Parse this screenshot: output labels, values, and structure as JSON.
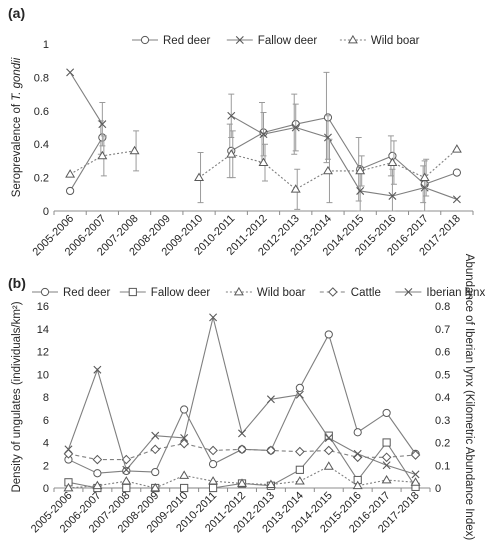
{
  "chart_data": [
    {
      "panel": "(a)",
      "type": "line",
      "ylabel_prefix": "Seroprevalence of ",
      "ylabel_italic": "T. gondii",
      "ylim": [
        0,
        1
      ],
      "yticks": [
        "0",
        "0.2",
        "0.4",
        "0.6",
        "0.8",
        "1"
      ],
      "categories": [
        "2005-2006",
        "2006-2007",
        "2007-2008",
        "2008-2009",
        "2009-2010",
        "2010-2011",
        "2011-2012",
        "2012-2013",
        "2013-2014",
        "2014-2015",
        "2015-2016",
        "2016-2017",
        "2017-2018"
      ],
      "legend_position": "top",
      "series": [
        {
          "name": "Red deer",
          "marker": "circle",
          "dash": "solid",
          "color": "#7f7f7f",
          "values": [
            0.12,
            0.44,
            null,
            null,
            null,
            0.36,
            0.47,
            0.52,
            0.56,
            0.25,
            0.33,
            0.16,
            0.23
          ],
          "errors": [
            null,
            0.1,
            null,
            null,
            null,
            0.16,
            0.18,
            0.18,
            0.27,
            0.19,
            0.12,
            0.11,
            null
          ]
        },
        {
          "name": "Fallow deer",
          "marker": "cross",
          "dash": "solid",
          "color": "#7f7f7f",
          "values": [
            0.83,
            0.52,
            null,
            null,
            null,
            0.57,
            0.46,
            0.5,
            0.44,
            0.12,
            0.09,
            0.14,
            0.07
          ],
          "errors": [
            null,
            0.13,
            null,
            null,
            null,
            0.13,
            0.13,
            0.14,
            0.13,
            0.14,
            0.16,
            0.16,
            null
          ]
        },
        {
          "name": "Wild boar",
          "marker": "triangle",
          "dash": "dotted",
          "color": "#7f7f7f",
          "values": [
            0.22,
            0.33,
            0.36,
            null,
            0.2,
            0.34,
            0.29,
            0.13,
            0.24,
            0.24,
            0.29,
            0.2,
            0.37
          ],
          "errors": [
            null,
            0.12,
            0.12,
            null,
            0.15,
            0.14,
            0.11,
            0.12,
            0.19,
            0.09,
            0.13,
            0.11,
            null
          ]
        }
      ]
    },
    {
      "panel": "(b)",
      "type": "line",
      "ylabel": "Density of ungulates (individuals/km²)",
      "ylabel_right": "Abundance of Iberian lynx (Kilometric Abundance Index)",
      "ylim": [
        0,
        16
      ],
      "ylim_right": [
        0,
        0.8
      ],
      "yticks": [
        "0",
        "2",
        "4",
        "6",
        "8",
        "10",
        "12",
        "14",
        "16"
      ],
      "yticks_right": [
        "0",
        "0.1",
        "0.2",
        "0.3",
        "0.4",
        "0.5",
        "0.6",
        "0.7",
        "0.8"
      ],
      "categories": [
        "2005-2006",
        "2006-2007",
        "2007-2008",
        "2008-2009",
        "2009-2010",
        "2010-2011",
        "2011-2012",
        "2012-2013",
        "2013-2014",
        "2014-2015",
        "2015-2016",
        "2016-2017",
        "2017-2018"
      ],
      "legend_position": "top",
      "series": [
        {
          "name": "Red deer",
          "marker": "circle",
          "dash": "solid",
          "axis": "left",
          "values": [
            2.5,
            1.3,
            1.5,
            1.4,
            6.9,
            2.1,
            3.4,
            3.3,
            8.8,
            13.5,
            4.9,
            6.6,
            3.0
          ]
        },
        {
          "name": "Fallow deer",
          "marker": "square",
          "dash": "solid",
          "axis": "left",
          "values": [
            0.5,
            0.0,
            0.0,
            0.0,
            0.0,
            0.0,
            0.4,
            0.2,
            1.6,
            4.6,
            0.7,
            4.0,
            0.1
          ]
        },
        {
          "name": "Wild boar",
          "marker": "triangle",
          "dash": "dotted",
          "axis": "left",
          "values": [
            0.0,
            0.2,
            0.6,
            0.0,
            1.1,
            0.6,
            0.4,
            0.3,
            0.6,
            1.9,
            0.2,
            0.7,
            0.5
          ]
        },
        {
          "name": "Cattle",
          "marker": "diamond",
          "dash": "dashed",
          "axis": "left",
          "values": [
            3.0,
            2.5,
            2.5,
            3.4,
            3.9,
            3.3,
            3.4,
            3.3,
            3.2,
            3.3,
            2.7,
            2.7,
            2.9
          ]
        },
        {
          "name": "Iberian lynx",
          "marker": "cross",
          "dash": "solid",
          "axis": "right",
          "values": [
            0.17,
            0.52,
            0.08,
            0.23,
            0.22,
            0.75,
            0.24,
            0.39,
            0.41,
            0.22,
            0.15,
            0.1,
            0.06
          ]
        }
      ]
    }
  ]
}
